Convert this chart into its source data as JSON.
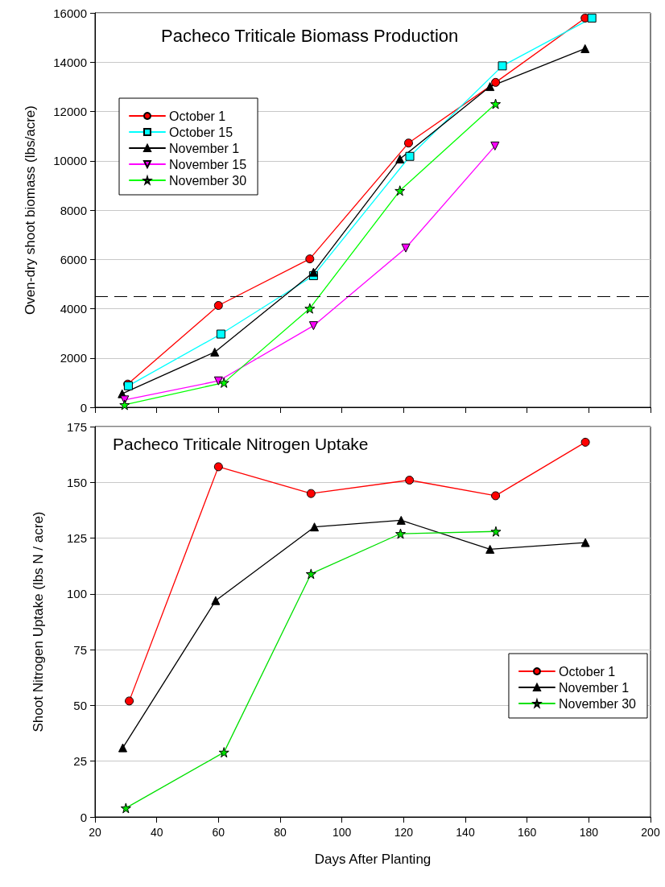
{
  "chart_data": [
    {
      "type": "line",
      "title": "Pacheco Triticale Biomass Production",
      "ylabel": "Oven-dry shoot biomass (lbs/acre)",
      "xlim": [
        20,
        200
      ],
      "xticks": [
        20,
        40,
        60,
        80,
        100,
        120,
        140,
        160,
        180,
        200
      ],
      "ylim": [
        0,
        16000
      ],
      "yticks": [
        0,
        2000,
        4000,
        6000,
        8000,
        10000,
        12000,
        14000,
        16000
      ],
      "grid": "y",
      "legend": "top left",
      "tick_labels": "y",
      "line_style": "solid",
      "ref_lines": [
        {
          "axis": "y",
          "value": 4500,
          "label": null,
          "color": "#000000",
          "line_style": "dashed"
        }
      ],
      "series": [
        {
          "name": "October 1",
          "color": "#ff0000",
          "marker": "circle",
          "x": [
            30.6,
            60,
            89.6,
            121.6,
            149.8,
            178.8
          ],
          "values": [
            940,
            4130,
            6020,
            10720,
            13180,
            15790
          ]
        },
        {
          "name": "October 15",
          "color": "#00ffff",
          "marker": "square",
          "x": [
            30.8,
            60.8,
            90.8,
            122,
            152,
            181
          ],
          "values": [
            870,
            2970,
            5340,
            10180,
            13850,
            15790
          ]
        },
        {
          "name": "November 1",
          "color": "#000000",
          "marker": "triangle",
          "x": [
            28.8,
            58.8,
            90.8,
            118.8,
            148,
            178.8
          ],
          "values": [
            550,
            2240,
            5480,
            10070,
            13010,
            14550
          ]
        },
        {
          "name": "November 15",
          "color": "#ff00ff",
          "marker": "triangle-down",
          "x": [
            29.6,
            60,
            90.8,
            120.7,
            149.6
          ],
          "values": [
            300,
            1070,
            3310,
            6460,
            10600
          ]
        },
        {
          "name": "November 30",
          "color": "#00ff00",
          "marker": "star",
          "x": [
            29.6,
            61.8,
            89.6,
            118.8,
            149.8
          ],
          "values": [
            100,
            1000,
            4010,
            8790,
            12310
          ]
        }
      ]
    },
    {
      "type": "line",
      "title": "Pacheco Triticale Nitrogen Uptake",
      "xlabel": "Days After Planting",
      "ylabel": "Shoot Nitrogen Uptake (lbs N / acre)",
      "xlim": [
        20,
        200
      ],
      "xticks": [
        20,
        40,
        60,
        80,
        100,
        120,
        140,
        160,
        180,
        200
      ],
      "ylim": [
        0,
        175
      ],
      "yticks": [
        0,
        25,
        50,
        75,
        100,
        125,
        150,
        175
      ],
      "grid": "y",
      "legend": "right",
      "line_style": "solid",
      "series": [
        {
          "name": "October 1",
          "color": "#ff0000",
          "marker": "circle",
          "x": [
            31.1,
            60,
            90,
            121.9,
            149.8,
            178.9
          ],
          "values": [
            52,
            157,
            145,
            151,
            144,
            168
          ]
        },
        {
          "name": "November 1",
          "color": "#000000",
          "marker": "triangle",
          "x": [
            29,
            59.1,
            91.1,
            119.2,
            148,
            178.9
          ],
          "values": [
            31,
            97,
            130,
            133,
            120,
            123
          ]
        },
        {
          "name": "November 30",
          "color": "#00e000",
          "marker": "star",
          "x": [
            30,
            61.8,
            90,
            119,
            149.9
          ],
          "values": [
            4,
            29,
            109,
            127,
            128
          ]
        }
      ]
    }
  ]
}
